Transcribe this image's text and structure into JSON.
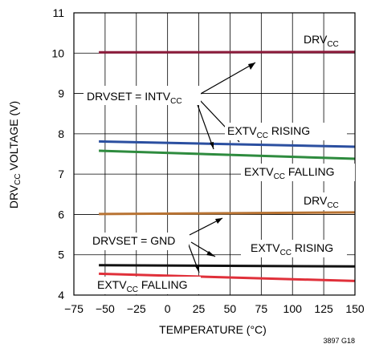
{
  "chart_data": {
    "type": "line",
    "title": "",
    "xlabel": "TEMPERATURE (°C)",
    "ylabel": {
      "pre": "DRV",
      "sub": "CC",
      "post": " VOLTAGE (V)"
    },
    "xlim": [
      -75,
      150
    ],
    "ylim": [
      4,
      11
    ],
    "xticks": [
      -75,
      -50,
      -25,
      0,
      25,
      50,
      75,
      100,
      125,
      150
    ],
    "yticks": [
      4,
      5,
      6,
      7,
      8,
      9,
      10,
      11
    ],
    "grid": true,
    "series": [
      {
        "color": "#8b1a3a",
        "x": [
          -55,
          150
        ],
        "y": [
          10.02,
          10.03
        ]
      },
      {
        "color": "#2b4fa0",
        "x": [
          -55,
          150
        ],
        "y": [
          7.81,
          7.68
        ]
      },
      {
        "color": "#2e8b3e",
        "x": [
          -55,
          150
        ],
        "y": [
          7.58,
          7.38
        ]
      },
      {
        "color": "#b87333",
        "x": [
          -55,
          150
        ],
        "y": [
          6.01,
          6.05
        ]
      },
      {
        "color": "#111111",
        "x": [
          -55,
          150
        ],
        "y": [
          4.74,
          4.71
        ]
      },
      {
        "color": "#e0303a",
        "x": [
          -55,
          150
        ],
        "y": [
          4.53,
          4.35
        ]
      }
    ],
    "annotations": [
      {
        "id": "drv-hi",
        "parts": [
          {
            "t": "DRV"
          },
          {
            "t": "CC",
            "sub": true
          }
        ]
      },
      {
        "id": "drvset-intv",
        "parts": [
          {
            "t": "DRVSET = INTV"
          },
          {
            "t": "CC",
            "sub": true
          }
        ]
      },
      {
        "id": "ext-rising-hi",
        "parts": [
          {
            "t": "EXTV"
          },
          {
            "t": "CC",
            "sub": true
          },
          {
            "t": " RISING"
          }
        ]
      },
      {
        "id": "ext-falling-hi",
        "parts": [
          {
            "t": "EXTV"
          },
          {
            "t": "CC",
            "sub": true
          },
          {
            "t": " FALLING"
          }
        ]
      },
      {
        "id": "drv-lo",
        "parts": [
          {
            "t": "DRV"
          },
          {
            "t": "CC",
            "sub": true
          }
        ]
      },
      {
        "id": "drvset-gnd",
        "parts": [
          {
            "t": "DRVSET = GND"
          }
        ]
      },
      {
        "id": "ext-rising-lo",
        "parts": [
          {
            "t": "EXTV"
          },
          {
            "t": "CC",
            "sub": true
          },
          {
            "t": " RISING"
          }
        ]
      },
      {
        "id": "ext-falling-lo",
        "parts": [
          {
            "t": "EXTV"
          },
          {
            "t": "CC",
            "sub": true
          },
          {
            "t": " FALLING"
          }
        ]
      }
    ]
  },
  "figure_id": "3897 G18"
}
